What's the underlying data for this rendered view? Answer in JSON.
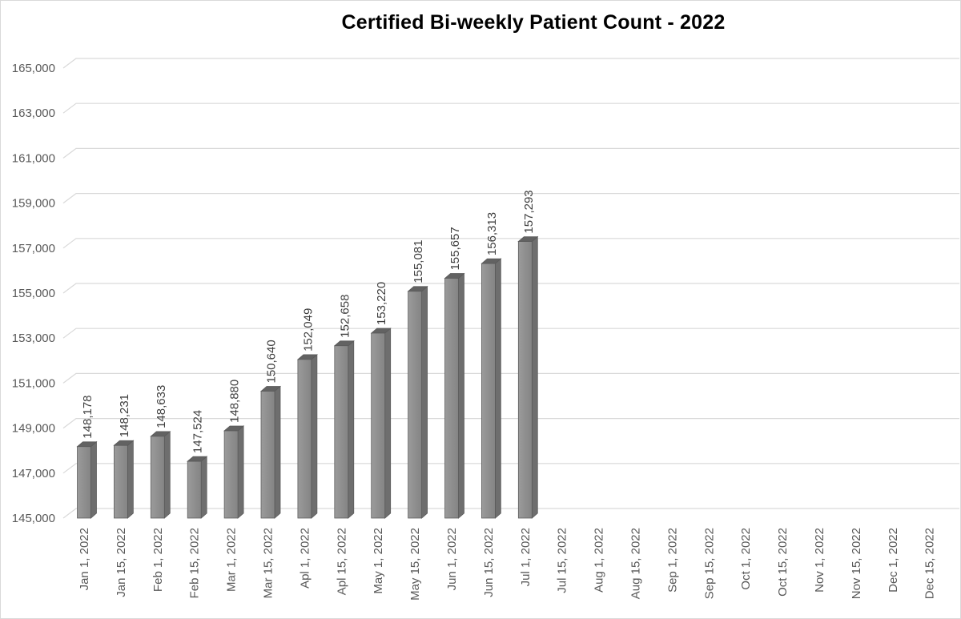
{
  "chart_data": {
    "type": "bar",
    "style": "3d-column",
    "title": "Certified Bi-weekly Patient Count - 2022",
    "xlabel": "",
    "ylabel": "",
    "categories": [
      "Jan 1, 2022",
      "Jan 15, 2022",
      "Feb 1, 2022",
      "Feb 15, 2022",
      "Mar 1, 2022",
      "Mar 15, 2022",
      "Apl 1, 2022",
      "Apl 15, 2022",
      "May 1, 2022",
      "May 15, 2022",
      "Jun 1, 2022",
      "Jun 15, 2022",
      "Jul 1, 2022",
      "Jul 15, 2022",
      "Aug 1, 2022",
      "Aug 15, 2022",
      "Sep 1, 2022",
      "Sep 15, 2022",
      "Oct 1, 2022",
      "Oct 15, 2022",
      "Nov 1, 2022",
      "Nov 15, 2022",
      "Dec 1, 2022",
      "Dec 15, 2022"
    ],
    "values": [
      148178,
      148231,
      148633,
      147524,
      148880,
      150640,
      152049,
      152658,
      153220,
      155081,
      155657,
      156313,
      157293,
      null,
      null,
      null,
      null,
      null,
      null,
      null,
      null,
      null,
      null,
      null
    ],
    "data_labels": [
      "148,178",
      "148,231",
      "148,633",
      "147,524",
      "148,880",
      "150,640",
      "152,049",
      "152,658",
      "153,220",
      "155,081",
      "155,657",
      "156,313",
      "157,293"
    ],
    "ylim": [
      145000,
      165000
    ],
    "y_tick_step": 2000,
    "y_tick_labels": [
      "145,000",
      "147,000",
      "149,000",
      "151,000",
      "153,000",
      "155,000",
      "157,000",
      "159,000",
      "161,000",
      "163,000",
      "165,000"
    ],
    "grid": true,
    "legend": "none",
    "colors": {
      "bar_front": "#8f8f8f",
      "bar_front_light": "#9b9b9b",
      "bar_front_dark": "#848484",
      "bar_side": "#6e6e6e",
      "bar_top": "#626262",
      "bar_outline": "#5a5a5a",
      "gridline": "#d9d9d9",
      "axis_text": "#595959",
      "data_label_text": "#3f3f3f",
      "title_text": "#000000",
      "background": "#ffffff",
      "chart_border": "#d9d9d9"
    }
  }
}
